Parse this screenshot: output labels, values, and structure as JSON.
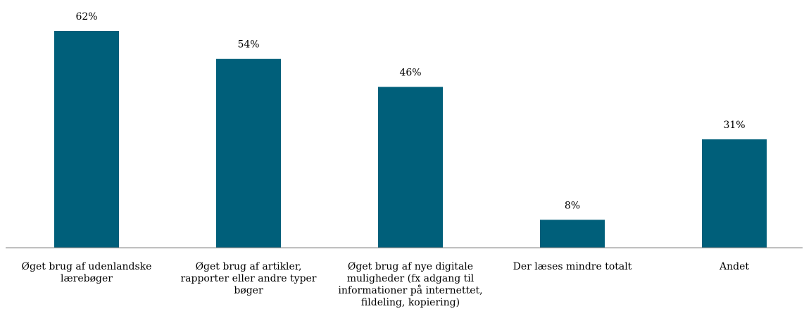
{
  "chart_data": {
    "type": "bar",
    "title": "",
    "xlabel": "",
    "ylabel": "",
    "ylim": [
      0,
      62
    ],
    "grid": false,
    "legend": "none",
    "bar_color": "#005f7a",
    "baseline_color": "#7f7f7f",
    "categories": [
      [
        "Øget brug af udenlandske",
        "lærebøger"
      ],
      [
        "Øget brug af artikler,",
        "rapporter eller andre typer",
        "bøger"
      ],
      [
        "Øget brug af nye digitale",
        "muligheder (fx adgang til",
        "informationer på internettet,",
        "fildeling, kopiering)"
      ],
      [
        "Der læses mindre totalt"
      ],
      [
        "Andet"
      ]
    ],
    "values": [
      62,
      54,
      46,
      8,
      31
    ],
    "value_labels": [
      "62%",
      "54%",
      "46%",
      "8%",
      "31%"
    ]
  }
}
